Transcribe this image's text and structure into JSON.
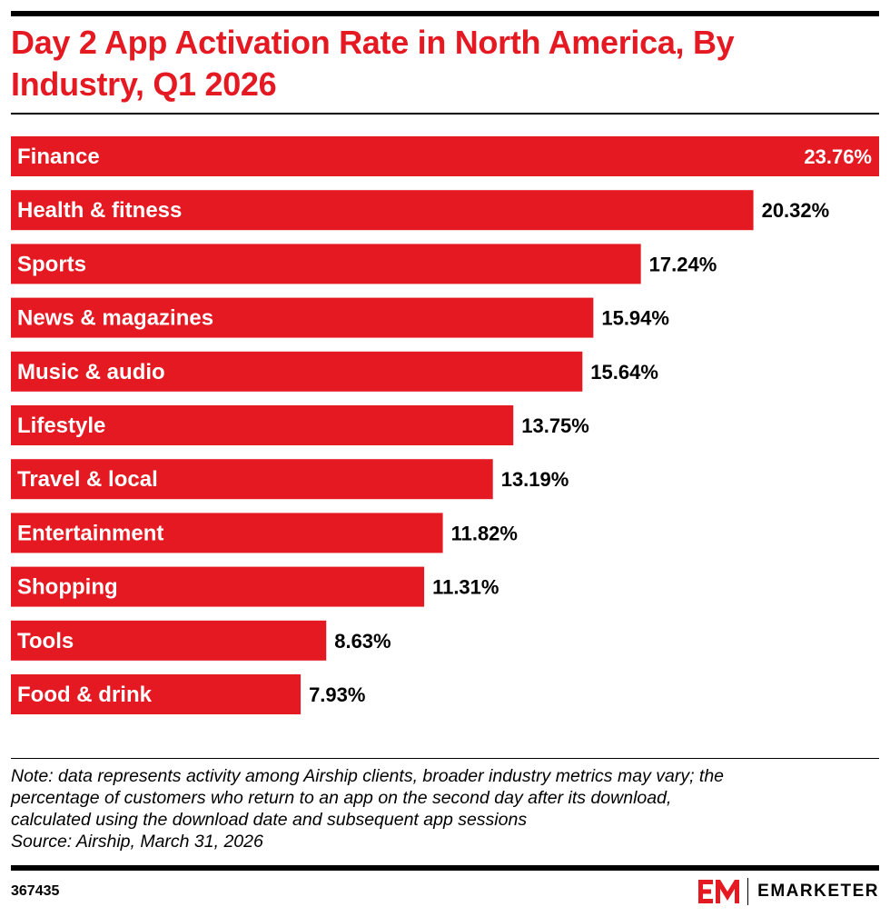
{
  "header": {
    "title": "Day 2 App Activation Rate in North America, By Industry, Q1 2026"
  },
  "chart_data": {
    "type": "bar",
    "orientation": "horizontal",
    "categories": [
      "Finance",
      "Health & fitness",
      "Sports",
      "News & magazines",
      "Music & audio",
      "Lifestyle",
      "Travel & local",
      "Entertainment",
      "Shopping",
      "Tools",
      "Food & drink"
    ],
    "values": [
      23.76,
      20.32,
      17.24,
      15.94,
      15.64,
      13.75,
      13.19,
      11.82,
      11.31,
      8.63,
      7.93
    ],
    "value_labels": [
      "23.76%",
      "20.32%",
      "17.24%",
      "15.94%",
      "15.64%",
      "13.75%",
      "13.19%",
      "11.82%",
      "11.31%",
      "8.63%",
      "7.93%"
    ],
    "title": "Day 2 App Activation Rate in North America, By Industry, Q1 2026",
    "xlim": [
      0,
      23.76
    ],
    "grid": false,
    "bar_color": "#e41922"
  },
  "footer": {
    "note_lines": [
      "Note: data represents activity among Airship clients, broader industry metrics may vary; the",
      "percentage of customers who return to an app on the second day after its download,",
      "calculated using the download date and subsequent app sessions"
    ],
    "source": "Source: Airship, March 31, 2026",
    "chart_id": "367435",
    "brand": "EMARKETER",
    "brand_icon": "em-logo-icon",
    "brand_color": "#e41922"
  }
}
